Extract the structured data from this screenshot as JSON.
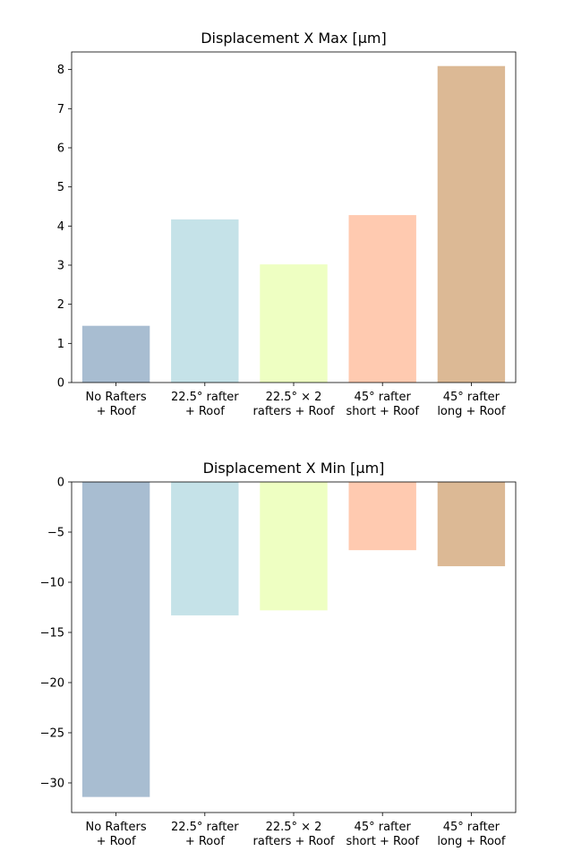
{
  "colors": [
    "#a8bdd1",
    "#c5e2e8",
    "#eeffc2",
    "#ffcab0",
    "#dcb995"
  ],
  "chart_data": [
    {
      "type": "bar",
      "title": "Displacement X Max [µm]",
      "categories": [
        [
          "No Rafters",
          "+ Roof"
        ],
        [
          "22.5° rafter",
          "+ Roof"
        ],
        [
          "22.5° × 2",
          "rafters + Roof"
        ],
        [
          "45° rafter",
          "short + Roof"
        ],
        [
          "45° rafter",
          "long + Roof"
        ]
      ],
      "values": [
        1.45,
        4.17,
        3.02,
        4.28,
        8.09
      ],
      "ylim": [
        0,
        8.45
      ],
      "yticks": [
        0,
        1,
        2,
        3,
        4,
        5,
        6,
        7,
        8
      ],
      "ytick_labels": [
        "0",
        "1",
        "2",
        "3",
        "4",
        "5",
        "6",
        "7",
        "8"
      ]
    },
    {
      "type": "bar",
      "title": "Displacement X Min [µm]",
      "categories": [
        [
          "No Rafters",
          "+ Roof"
        ],
        [
          "22.5° rafter",
          "+ Roof"
        ],
        [
          "22.5° × 2",
          "rafters + Roof"
        ],
        [
          "45° rafter",
          "short + Roof"
        ],
        [
          "45° rafter",
          "long + Roof"
        ]
      ],
      "values": [
        -31.4,
        -13.3,
        -12.8,
        -6.8,
        -8.4
      ],
      "ylim": [
        -32.95,
        0
      ],
      "yticks": [
        0,
        -5,
        -10,
        -15,
        -20,
        -25,
        -30
      ],
      "ytick_labels": [
        "0",
        "−5",
        "−10",
        "−15",
        "−20",
        "−25",
        "−30"
      ]
    }
  ]
}
